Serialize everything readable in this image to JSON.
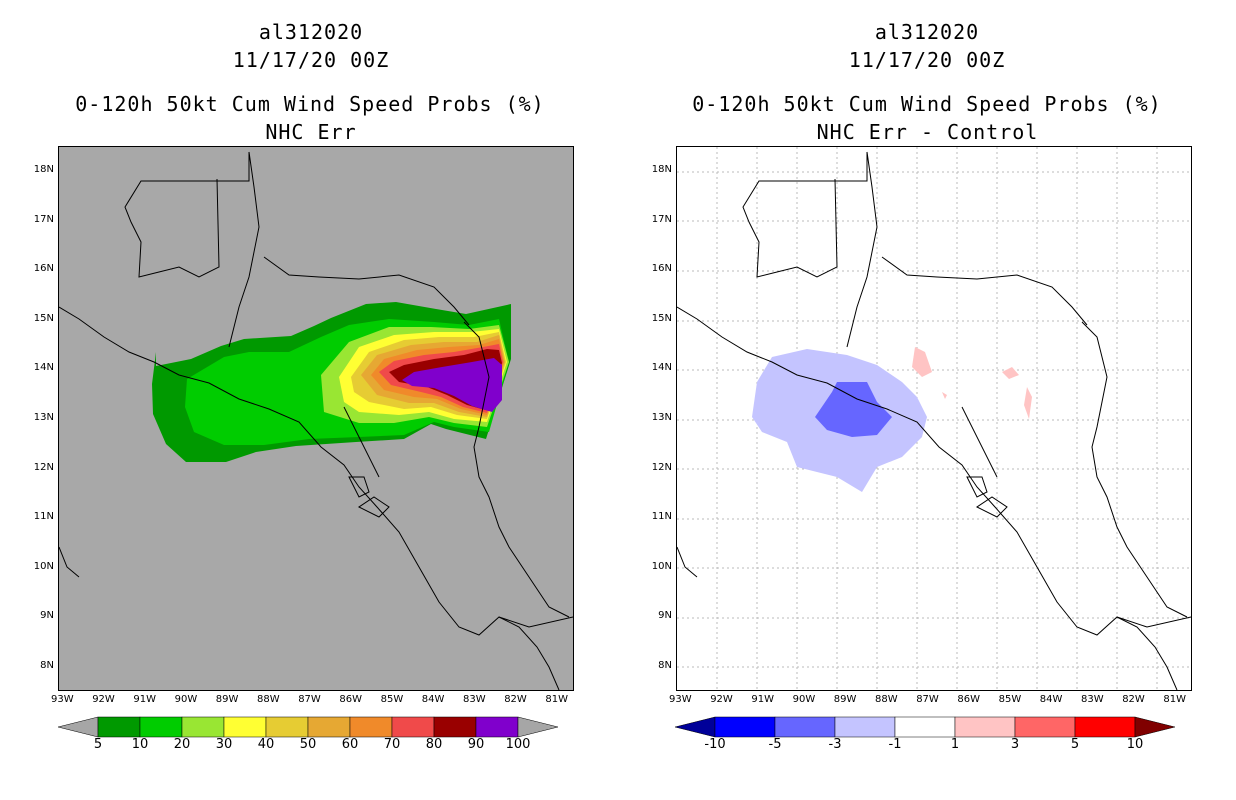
{
  "left": {
    "storm_id": "al312020",
    "datetime": "11/17/20 00Z",
    "product": "0-120h 50kt Cum Wind Speed Probs (%)",
    "subtitle": "NHC Err",
    "colorbar": {
      "labels": [
        "5",
        "10",
        "20",
        "30",
        "40",
        "50",
        "60",
        "70",
        "80",
        "90",
        "100"
      ],
      "colors": [
        "#009900",
        "#00cc00",
        "#99e633",
        "#ffff33",
        "#e6cc33",
        "#e6a833",
        "#f08a2a",
        "#f04a4a",
        "#990000",
        "#8000cc"
      ],
      "under": "#a6a6a6",
      "over": "#a6a6a6"
    }
  },
  "right": {
    "storm_id": "al312020",
    "datetime": "11/17/20 00Z",
    "product": "0-120h 50kt Cum Wind Speed Probs (%)",
    "subtitle": "NHC Err - Control",
    "colorbar": {
      "labels": [
        "-10",
        "-5",
        "-3",
        "-1",
        "1",
        "3",
        "5",
        "10"
      ],
      "colors": [
        "#0000ff",
        "#6666ff",
        "#c4c4ff",
        "#ffffff",
        "#ffc4c4",
        "#ff6666",
        "#ff0000"
      ],
      "under": "#000099",
      "over": "#800000"
    }
  },
  "lat_labels": [
    "18N",
    "17N",
    "16N",
    "15N",
    "14N",
    "13N",
    "12N",
    "11N",
    "10N",
    "9N",
    "8N"
  ],
  "lon_labels": [
    "93W",
    "92W",
    "91W",
    "90W",
    "89W",
    "88W",
    "87W",
    "86W",
    "85W",
    "84W",
    "83W",
    "82W",
    "81W"
  ]
}
